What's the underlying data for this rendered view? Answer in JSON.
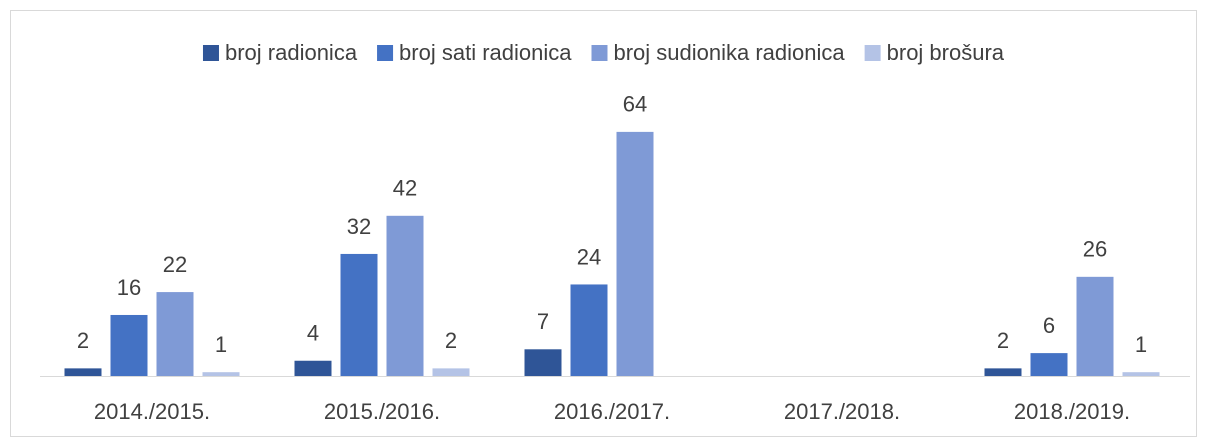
{
  "chart_data": {
    "type": "bar",
    "categories": [
      "2014./2015.",
      "2015./2016.",
      "2016./2017.",
      "2017./2018.",
      "2018./2019."
    ],
    "series": [
      {
        "name": "broj radionica",
        "color": "#2f5597",
        "values": [
          2,
          4,
          7,
          null,
          2
        ]
      },
      {
        "name": "broj sati radionica",
        "color": "#4472c4",
        "values": [
          16,
          32,
          24,
          null,
          6
        ]
      },
      {
        "name": "broj sudionika radionica",
        "color": "#7f9ad6",
        "values": [
          22,
          42,
          64,
          null,
          26
        ]
      },
      {
        "name": "broj brošura",
        "color": "#b4c3e6",
        "values": [
          1,
          2,
          null,
          null,
          1
        ]
      }
    ],
    "ylim": [
      0,
      70
    ],
    "legend": "top"
  }
}
